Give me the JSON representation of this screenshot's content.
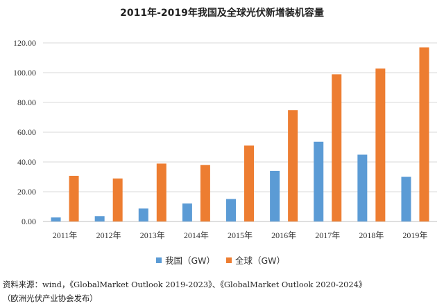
{
  "chart_data": {
    "type": "bar",
    "title": "2011年-2019年我国及全球光伏新增装机容量",
    "categories": [
      "2011年",
      "2012年",
      "2013年",
      "2014年",
      "2015年",
      "2016年",
      "2017年",
      "2018年",
      "2019年"
    ],
    "series": [
      {
        "name": "我国（GW）",
        "color": "#5B9BD5",
        "values": [
          2.7,
          3.6,
          8.7,
          12.1,
          15.1,
          34.0,
          53.6,
          44.9,
          30.0
        ]
      },
      {
        "name": "全球（GW）",
        "color": "#ED7D31",
        "values": [
          30.7,
          28.9,
          38.9,
          38.0,
          51.0,
          74.8,
          98.9,
          102.8,
          117.0
        ]
      }
    ],
    "yticks": [
      "0.00",
      "20.00",
      "40.00",
      "60.00",
      "80.00",
      "100.00",
      "120.00"
    ],
    "ylim": [
      0,
      120
    ],
    "xlabel": "",
    "ylabel": "",
    "grid": true,
    "legend_position": "bottom"
  },
  "source_note": "资料来源：wind，《GlobalMarket Outlook 2019-2023》、《GlobalMarket Outlook 2020-2024》\n（欧洲光伏产业协会发布）"
}
